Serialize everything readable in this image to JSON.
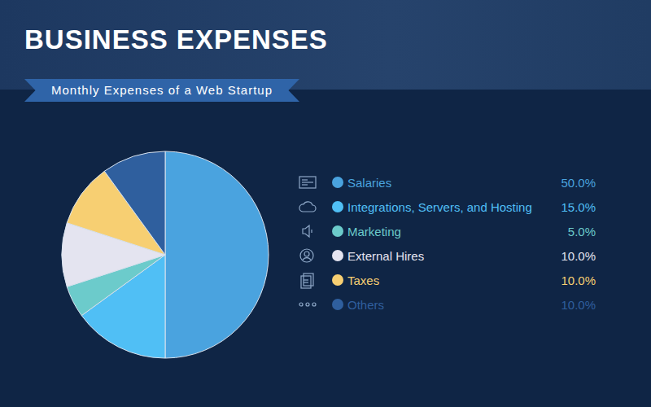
{
  "chart_data": {
    "type": "pie",
    "title": "BUSINESS EXPENSES",
    "subtitle": "Monthly Expenses of a Web Startup",
    "categories": [
      "Salaries",
      "Integrations, Servers, and Hosting",
      "Marketing",
      "External Hires",
      "Taxes",
      "Others"
    ],
    "values": [
      50,
      15,
      5,
      10,
      10,
      10
    ],
    "value_labels": [
      "50.0%",
      "15.0%",
      "5.0%",
      "10.0%",
      "10.0%",
      "10.0%"
    ],
    "colors": [
      "#4aa3df",
      "#50bff5",
      "#6ccbcb",
      "#e4e4f0",
      "#f7cf72",
      "#2f5f9e"
    ],
    "legend": "right"
  }
}
